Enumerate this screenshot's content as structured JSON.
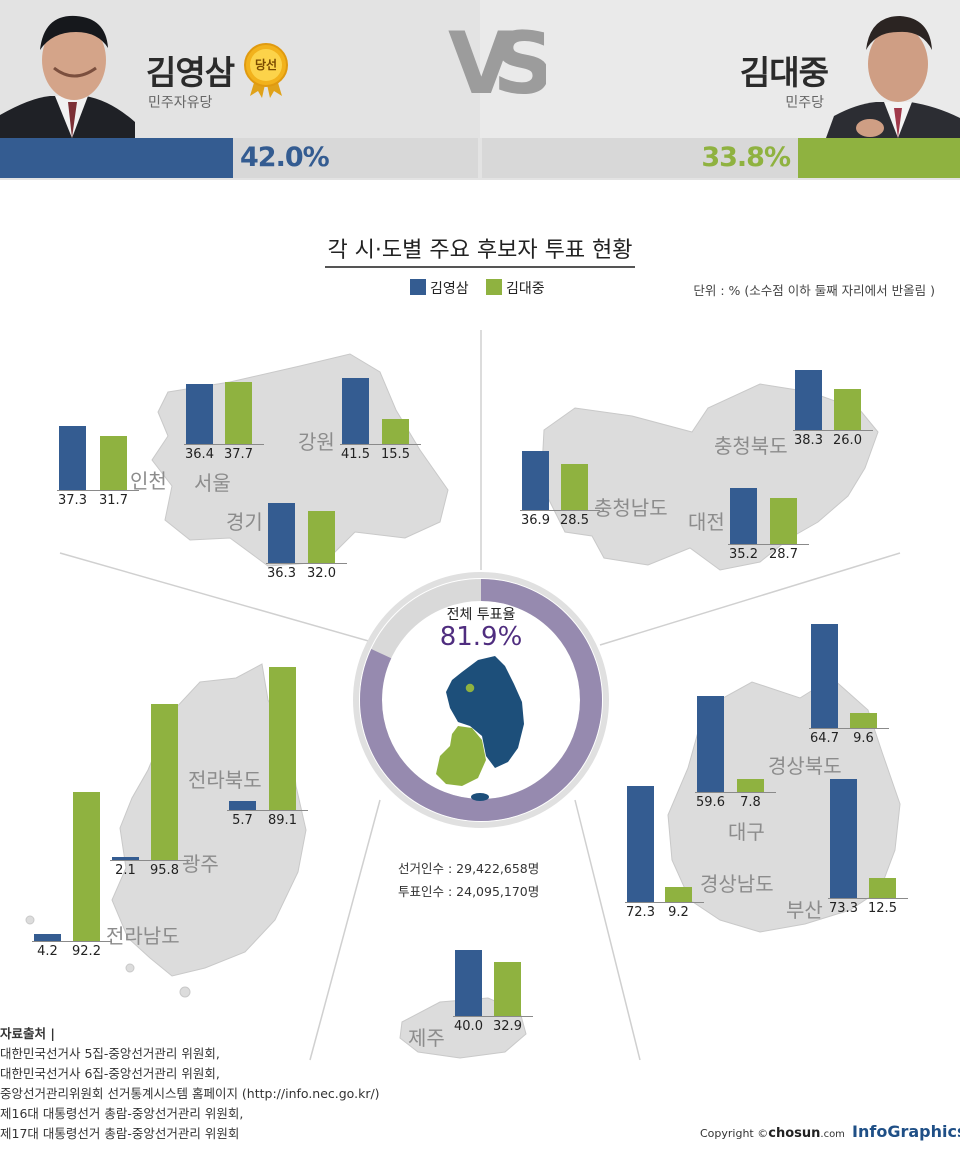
{
  "header": {
    "candidate_a": {
      "name": "김영삼",
      "party": "민주자유당",
      "badge": "당선",
      "pct": "42.0%",
      "color": "#345c91"
    },
    "candidate_b": {
      "name": "김대중",
      "party": "민주당",
      "pct": "33.8%",
      "color": "#8fb240"
    },
    "vs": "VS"
  },
  "title": "각 시·도별 주요 후보자 투표 현황",
  "legend": {
    "a": "김영삼",
    "b": "김대중"
  },
  "unit_note": "단위 : % (소수점 이하 둘째 자리에서 반올림 )",
  "center": {
    "label": "전체 투표율",
    "value": "81.9%",
    "turnout": 81.9,
    "voters": "선거인수 : 29,422,658명",
    "ballots": "투표인수 : 24,095,170명"
  },
  "chart_data": {
    "type": "bar",
    "title": "각 시·도별 주요 후보자 투표 현황",
    "unit": "%",
    "series": [
      {
        "name": "김영삼",
        "color": "#345c91"
      },
      {
        "name": "김대중",
        "color": "#8fb240"
      }
    ],
    "regions": [
      {
        "name": "인천",
        "values": [
          37.3,
          31.7
        ]
      },
      {
        "name": "서울",
        "values": [
          36.4,
          37.7
        ]
      },
      {
        "name": "강원",
        "values": [
          41.5,
          15.5
        ]
      },
      {
        "name": "경기",
        "values": [
          36.3,
          32.0
        ]
      },
      {
        "name": "충청북도",
        "values": [
          38.3,
          26.0
        ]
      },
      {
        "name": "충청남도",
        "values": [
          36.9,
          28.5
        ]
      },
      {
        "name": "대전",
        "values": [
          35.2,
          28.7
        ]
      },
      {
        "name": "전라북도",
        "values": [
          5.7,
          89.1
        ]
      },
      {
        "name": "광주",
        "values": [
          2.1,
          95.8
        ]
      },
      {
        "name": "전라남도",
        "values": [
          4.2,
          92.2
        ]
      },
      {
        "name": "경상북도",
        "values": [
          64.7,
          9.6
        ]
      },
      {
        "name": "대구",
        "values": [
          59.6,
          7.8
        ]
      },
      {
        "name": "경상남도",
        "values": [
          72.3,
          9.2
        ]
      },
      {
        "name": "부산",
        "values": [
          73.3,
          12.5
        ]
      },
      {
        "name": "제주",
        "values": [
          40.0,
          32.9
        ]
      }
    ]
  },
  "source": {
    "title": "자료출처 |",
    "lines": [
      "대한민국선거사 5집-중앙선거관리 위원회,",
      "대한민국선거사 6집-중앙선거관리 위원회,",
      "중앙선거관리위원회 선거통계시스템 홈페이지 (http://info.nec.go.kr/)",
      "제16대 대통령선거 총람-중앙선거관리 위원회,",
      "제17대 대통령선거 총람-중앙선거관리 위원회"
    ]
  },
  "footer": {
    "copyright": "Copyright ©",
    "brand": "chosun",
    "brand_suffix": ".com",
    "infographics": "InfoGraphics"
  }
}
